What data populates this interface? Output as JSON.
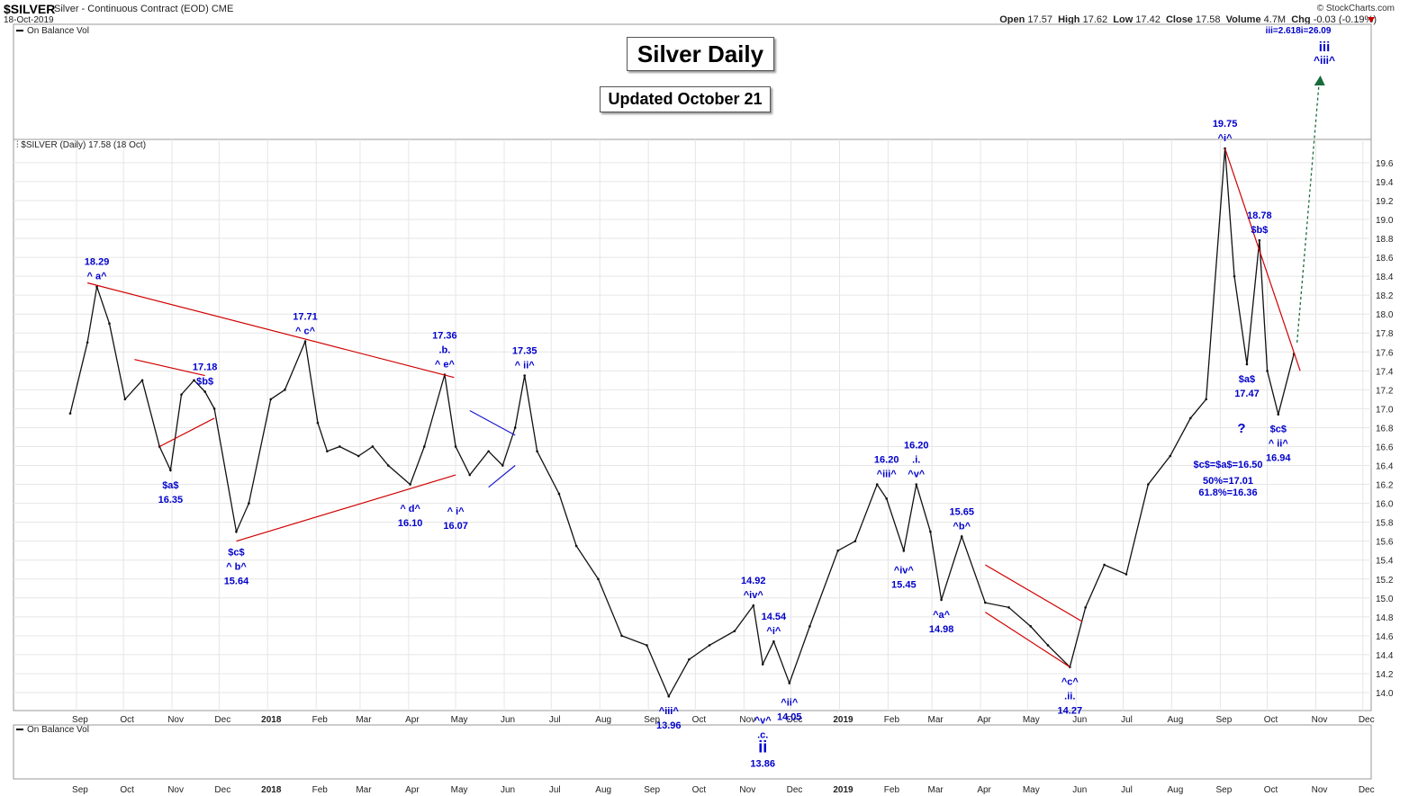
{
  "header": {
    "symbol": "$SILVER",
    "subtitle": "Silver - Continuous Contract (EOD) CME",
    "date": "18-Oct-2019",
    "credit": "© StockCharts.com",
    "open_label": "Open",
    "open": "17.57",
    "high_label": "High",
    "high": "17.62",
    "low_label": "Low",
    "low": "17.42",
    "close_label": "Close",
    "close": "17.58",
    "volume_label": "Volume",
    "volume": "4.7M",
    "chg_label": "Chg",
    "chg": "-0.03 (-0.19%)"
  },
  "title_box": "Silver Daily",
  "updated_box": "Updated October 21",
  "panels": {
    "top_indicator": "On Balance Vol",
    "main_label": "$SILVER (Daily) 17.58 (18 Oct)",
    "bottom_indicator": "On Balance Vol"
  },
  "colors": {
    "price": "#111111",
    "trendline": "#d00000",
    "channel": "#1a1acc",
    "label": "#0000cc",
    "projection": "#1a6b3a",
    "grid": "#e6e6e6"
  },
  "chart_data": {
    "type": "line",
    "title": "Silver Daily",
    "ylim": [
      13.8,
      19.75
    ],
    "y_ticks": [
      14.0,
      14.2,
      14.4,
      14.6,
      14.8,
      15.0,
      15.2,
      15.4,
      15.6,
      15.8,
      16.0,
      16.2,
      16.4,
      16.6,
      16.8,
      17.0,
      17.2,
      17.4,
      17.6,
      17.8,
      18.0,
      18.2,
      18.4,
      18.6,
      18.8,
      19.0,
      19.2,
      19.4,
      19.6
    ],
    "x_labels": [
      "Sep",
      "Oct",
      "Nov",
      "Dec",
      "2018",
      "Feb",
      "Mar",
      "Apr",
      "May",
      "Jun",
      "Jul",
      "Aug",
      "Sep",
      "Oct",
      "Nov",
      "Dec",
      "2019",
      "Feb",
      "Mar",
      "Apr",
      "May",
      "Jun",
      "Jul",
      "Aug",
      "Sep",
      "Oct",
      "Nov",
      "Dec"
    ],
    "series": [
      {
        "x": [
          "2017-08-28",
          "2017-09-08",
          "2017-09-14",
          "2017-09-22",
          "2017-10-02",
          "2017-10-13",
          "2017-10-24",
          "2017-10-31",
          "2017-11-07",
          "2017-11-15",
          "2017-11-22",
          "2017-11-28",
          "2017-12-12",
          "2017-12-20",
          "2018-01-03",
          "2018-01-12",
          "2018-01-25",
          "2018-02-02",
          "2018-02-08",
          "2018-02-16",
          "2018-02-28",
          "2018-03-09",
          "2018-03-19",
          "2018-04-02",
          "2018-04-11",
          "2018-04-24",
          "2018-05-01",
          "2018-05-10",
          "2018-05-22",
          "2018-05-31",
          "2018-06-08",
          "2018-06-14",
          "2018-06-22",
          "2018-07-06",
          "2018-07-17",
          "2018-07-31",
          "2018-08-15",
          "2018-08-31",
          "2018-09-14",
          "2018-09-27",
          "2018-10-10",
          "2018-10-26",
          "2018-11-07",
          "2018-11-13",
          "2018-11-20",
          "2018-11-30",
          "2018-12-13",
          "2018-12-31",
          "2019-01-11",
          "2019-01-25",
          "2019-01-31",
          "2019-02-11",
          "2019-02-19",
          "2019-02-28",
          "2019-03-07",
          "2019-03-20",
          "2019-04-04",
          "2019-04-19",
          "2019-05-03",
          "2019-05-14",
          "2019-05-28",
          "2019-06-07",
          "2019-06-19",
          "2019-07-03",
          "2019-07-17",
          "2019-07-31",
          "2019-08-13",
          "2019-08-23",
          "2019-09-04",
          "2019-09-10",
          "2019-09-18",
          "2019-09-26",
          "2019-10-01",
          "2019-10-08",
          "2019-10-18"
        ],
        "y": [
          16.95,
          17.7,
          18.29,
          17.9,
          17.1,
          17.3,
          16.6,
          16.35,
          17.15,
          17.3,
          17.18,
          17.0,
          15.7,
          16.0,
          17.1,
          17.2,
          17.71,
          16.85,
          16.55,
          16.6,
          16.5,
          16.6,
          16.4,
          16.2,
          16.6,
          17.36,
          16.6,
          16.3,
          16.55,
          16.4,
          16.8,
          17.35,
          16.55,
          16.1,
          15.55,
          15.2,
          14.6,
          14.5,
          13.96,
          14.35,
          14.5,
          14.65,
          14.92,
          14.3,
          14.54,
          14.1,
          14.7,
          15.5,
          15.6,
          16.2,
          16.05,
          15.5,
          16.2,
          15.7,
          14.98,
          15.65,
          14.95,
          14.9,
          14.7,
          14.5,
          14.27,
          14.9,
          15.35,
          15.25,
          16.2,
          16.5,
          16.9,
          17.1,
          19.75,
          18.4,
          17.47,
          18.78,
          17.4,
          16.94,
          17.58
        ]
      }
    ],
    "annotations": [
      {
        "date": "2017-09-14",
        "price": 18.29,
        "text": "18.29",
        "pos": "above"
      },
      {
        "date": "2017-09-14",
        "price": 18.29,
        "text": "^ a^",
        "pos": "above"
      },
      {
        "date": "2017-10-31",
        "price": 16.35,
        "text": "$a$",
        "pos": "below"
      },
      {
        "date": "2017-10-31",
        "price": 16.35,
        "text": "16.35",
        "pos": "below"
      },
      {
        "date": "2017-11-22",
        "price": 17.18,
        "text": "17.18",
        "pos": "above"
      },
      {
        "date": "2017-11-22",
        "price": 17.18,
        "text": "$b$",
        "pos": "above"
      },
      {
        "date": "2017-12-12",
        "price": 15.64,
        "text": "$c$",
        "pos": "below"
      },
      {
        "date": "2017-12-12",
        "price": 15.64,
        "text": "^ b^",
        "pos": "below"
      },
      {
        "date": "2017-12-12",
        "price": 15.64,
        "text": "15.64",
        "pos": "below"
      },
      {
        "date": "2018-01-25",
        "price": 17.71,
        "text": "17.71",
        "pos": "above"
      },
      {
        "date": "2018-01-25",
        "price": 17.71,
        "text": "^ c^",
        "pos": "above"
      },
      {
        "date": "2018-04-02",
        "price": 16.1,
        "text": "^ d^",
        "pos": "below"
      },
      {
        "date": "2018-04-02",
        "price": 16.1,
        "text": "16.10",
        "pos": "below"
      },
      {
        "date": "2018-04-24",
        "price": 17.36,
        "text": "17.36",
        "pos": "above"
      },
      {
        "date": "2018-04-24",
        "price": 17.36,
        "text": ".b.",
        "pos": "above"
      },
      {
        "date": "2018-04-24",
        "price": 17.36,
        "text": "^ e^",
        "pos": "above"
      },
      {
        "date": "2018-05-01",
        "price": 16.07,
        "text": "^ i^",
        "pos": "below"
      },
      {
        "date": "2018-05-01",
        "price": 16.07,
        "text": "16.07",
        "pos": "below"
      },
      {
        "date": "2018-06-14",
        "price": 17.35,
        "text": "17.35",
        "pos": "above"
      },
      {
        "date": "2018-06-14",
        "price": 17.35,
        "text": "^ ii^",
        "pos": "above"
      },
      {
        "date": "2018-09-14",
        "price": 13.96,
        "text": "^iii^",
        "pos": "below"
      },
      {
        "date": "2018-09-14",
        "price": 13.96,
        "text": "13.96",
        "pos": "below"
      },
      {
        "date": "2018-11-07",
        "price": 14.92,
        "text": "14.92",
        "pos": "above"
      },
      {
        "date": "2018-11-07",
        "price": 14.92,
        "text": "^iv^",
        "pos": "above"
      },
      {
        "date": "2018-11-13",
        "price": 13.86,
        "text": "^v^",
        "pos": "below"
      },
      {
        "date": "2018-11-13",
        "price": 13.86,
        "text": ".c.",
        "pos": "below"
      },
      {
        "date": "2018-11-13",
        "price": 13.86,
        "text": "ii",
        "pos": "below",
        "big": true
      },
      {
        "date": "2018-11-13",
        "price": 13.86,
        "text": "13.86",
        "pos": "below"
      },
      {
        "date": "2018-11-20",
        "price": 14.54,
        "text": "14.54",
        "pos": "above"
      },
      {
        "date": "2018-11-20",
        "price": 14.54,
        "text": "^i^",
        "pos": "above"
      },
      {
        "date": "2018-11-30",
        "price": 14.05,
        "text": "^ii^",
        "pos": "below"
      },
      {
        "date": "2018-11-30",
        "price": 14.05,
        "text": "14.05",
        "pos": "below"
      },
      {
        "date": "2019-01-31",
        "price": 16.2,
        "text": "16.20",
        "pos": "above"
      },
      {
        "date": "2019-01-31",
        "price": 16.2,
        "text": "^iii^",
        "pos": "above"
      },
      {
        "date": "2019-02-11",
        "price": 15.45,
        "text": "^iv^",
        "pos": "below"
      },
      {
        "date": "2019-02-11",
        "price": 15.45,
        "text": "15.45",
        "pos": "below"
      },
      {
        "date": "2019-02-19",
        "price": 16.2,
        "text": "16.20",
        "pos": "above"
      },
      {
        "date": "2019-02-19",
        "price": 16.2,
        "text": ".i.",
        "pos": "above"
      },
      {
        "date": "2019-02-19",
        "price": 16.2,
        "text": "^v^",
        "pos": "above"
      },
      {
        "date": "2019-03-07",
        "price": 14.98,
        "text": "^a^",
        "pos": "below"
      },
      {
        "date": "2019-03-07",
        "price": 14.98,
        "text": "14.98",
        "pos": "below"
      },
      {
        "date": "2019-03-20",
        "price": 15.65,
        "text": "15.65",
        "pos": "above"
      },
      {
        "date": "2019-03-20",
        "price": 15.65,
        "text": "^b^",
        "pos": "above"
      },
      {
        "date": "2019-05-28",
        "price": 14.27,
        "text": "^c^",
        "pos": "below"
      },
      {
        "date": "2019-05-28",
        "price": 14.27,
        "text": ".ii.",
        "pos": "below"
      },
      {
        "date": "2019-05-28",
        "price": 14.27,
        "text": "14.27",
        "pos": "below"
      },
      {
        "date": "2019-09-04",
        "price": 19.75,
        "text": "19.75",
        "pos": "above"
      },
      {
        "date": "2019-09-04",
        "price": 19.75,
        "text": "^i^",
        "pos": "above"
      },
      {
        "date": "2019-09-18",
        "price": 17.47,
        "text": "$a$",
        "pos": "below"
      },
      {
        "date": "2019-09-18",
        "price": 17.47,
        "text": "17.47",
        "pos": "below"
      },
      {
        "date": "2019-09-26",
        "price": 18.78,
        "text": "18.78",
        "pos": "above"
      },
      {
        "date": "2019-09-26",
        "price": 18.78,
        "text": "$b$",
        "pos": "above"
      },
      {
        "date": "2019-10-08",
        "price": 16.94,
        "text": "$c$",
        "pos": "below"
      },
      {
        "date": "2019-10-08",
        "price": 16.94,
        "text": "^ ii^",
        "pos": "below"
      },
      {
        "date": "2019-10-08",
        "price": 16.94,
        "text": "16.94",
        "pos": "below"
      }
    ],
    "notes": [
      "?",
      "$c$=$a$=16.50",
      "50%=17.01",
      "61.8%=16.36",
      "iii=2.618i=26.09",
      "iii",
      "^iii^"
    ],
    "trendlines": [
      {
        "color": "red",
        "from": [
          "2017-09-08",
          18.33
        ],
        "to": [
          "2018-04-30",
          17.33
        ]
      },
      {
        "color": "red",
        "from": [
          "2017-12-12",
          15.6
        ],
        "to": [
          "2018-05-01",
          16.3
        ]
      },
      {
        "color": "red",
        "from": [
          "2017-10-08",
          17.52
        ],
        "to": [
          "2017-11-22",
          17.35
        ]
      },
      {
        "color": "red",
        "from": [
          "2017-10-24",
          16.6
        ],
        "to": [
          "2017-11-28",
          16.9
        ]
      },
      {
        "color": "blue",
        "from": [
          "2018-05-10",
          16.98
        ],
        "to": [
          "2018-06-08",
          16.72
        ]
      },
      {
        "color": "blue",
        "from": [
          "2018-05-22",
          16.17
        ],
        "to": [
          "2018-06-08",
          16.4
        ]
      },
      {
        "color": "red",
        "from": [
          "2019-04-04",
          15.35
        ],
        "to": [
          "2019-06-05",
          14.75
        ]
      },
      {
        "color": "red",
        "from": [
          "2019-04-04",
          14.85
        ],
        "to": [
          "2019-05-28",
          14.27
        ]
      },
      {
        "color": "red",
        "from": [
          "2019-09-04",
          19.75
        ],
        "to": [
          "2019-10-22",
          17.4
        ]
      }
    ],
    "projection": {
      "from": [
        "2019-10-20",
        17.7
      ],
      "to": [
        "2019-12-02",
        26.09
      ]
    }
  }
}
